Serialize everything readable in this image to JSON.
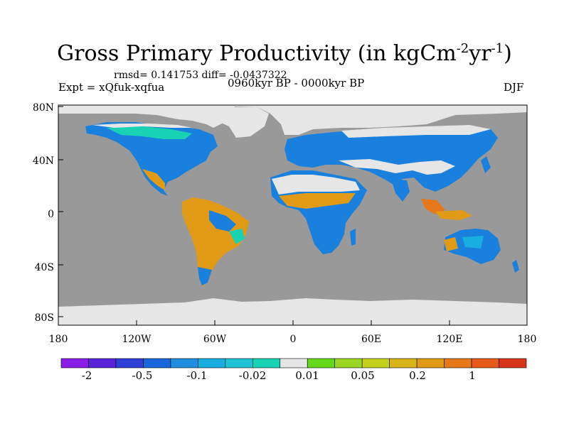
{
  "title": {
    "main": "Gross Primary Productivity (in kgCm",
    "sup1": "-2",
    "mid": "yr",
    "sup2": "-1",
    "end": ")"
  },
  "stats": "rmsd= 0.141753 diff= -0.0437322",
  "experiment": "Expt = xQfuk-xqfua",
  "period": "0960kyr BP - 0000kyr BP",
  "season": "DJF",
  "map": {
    "ocean_color": "#999999",
    "ice_color": "#e6e6e6",
    "y_ticks": [
      "80N",
      "40N",
      "0",
      "40S",
      "80S"
    ],
    "x_ticks": [
      "180",
      "120W",
      "60W",
      "0",
      "60E",
      "120E",
      "180"
    ]
  },
  "colorbar": {
    "colors": [
      "#8a1de6",
      "#5a22d9",
      "#2f3fd6",
      "#1a66dd",
      "#1f8ee0",
      "#18aee0",
      "#1cc4d6",
      "#19d2b4",
      "#e6e6e6",
      "#64d91a",
      "#9ad622",
      "#c6d11d",
      "#d9b418",
      "#e09a15",
      "#e6781a",
      "#e65a1a",
      "#d9331a"
    ],
    "labels": [
      "-2",
      "-0.5",
      "-0.1",
      "-0.02",
      "0.01",
      "0.05",
      "0.2",
      "1"
    ]
  }
}
